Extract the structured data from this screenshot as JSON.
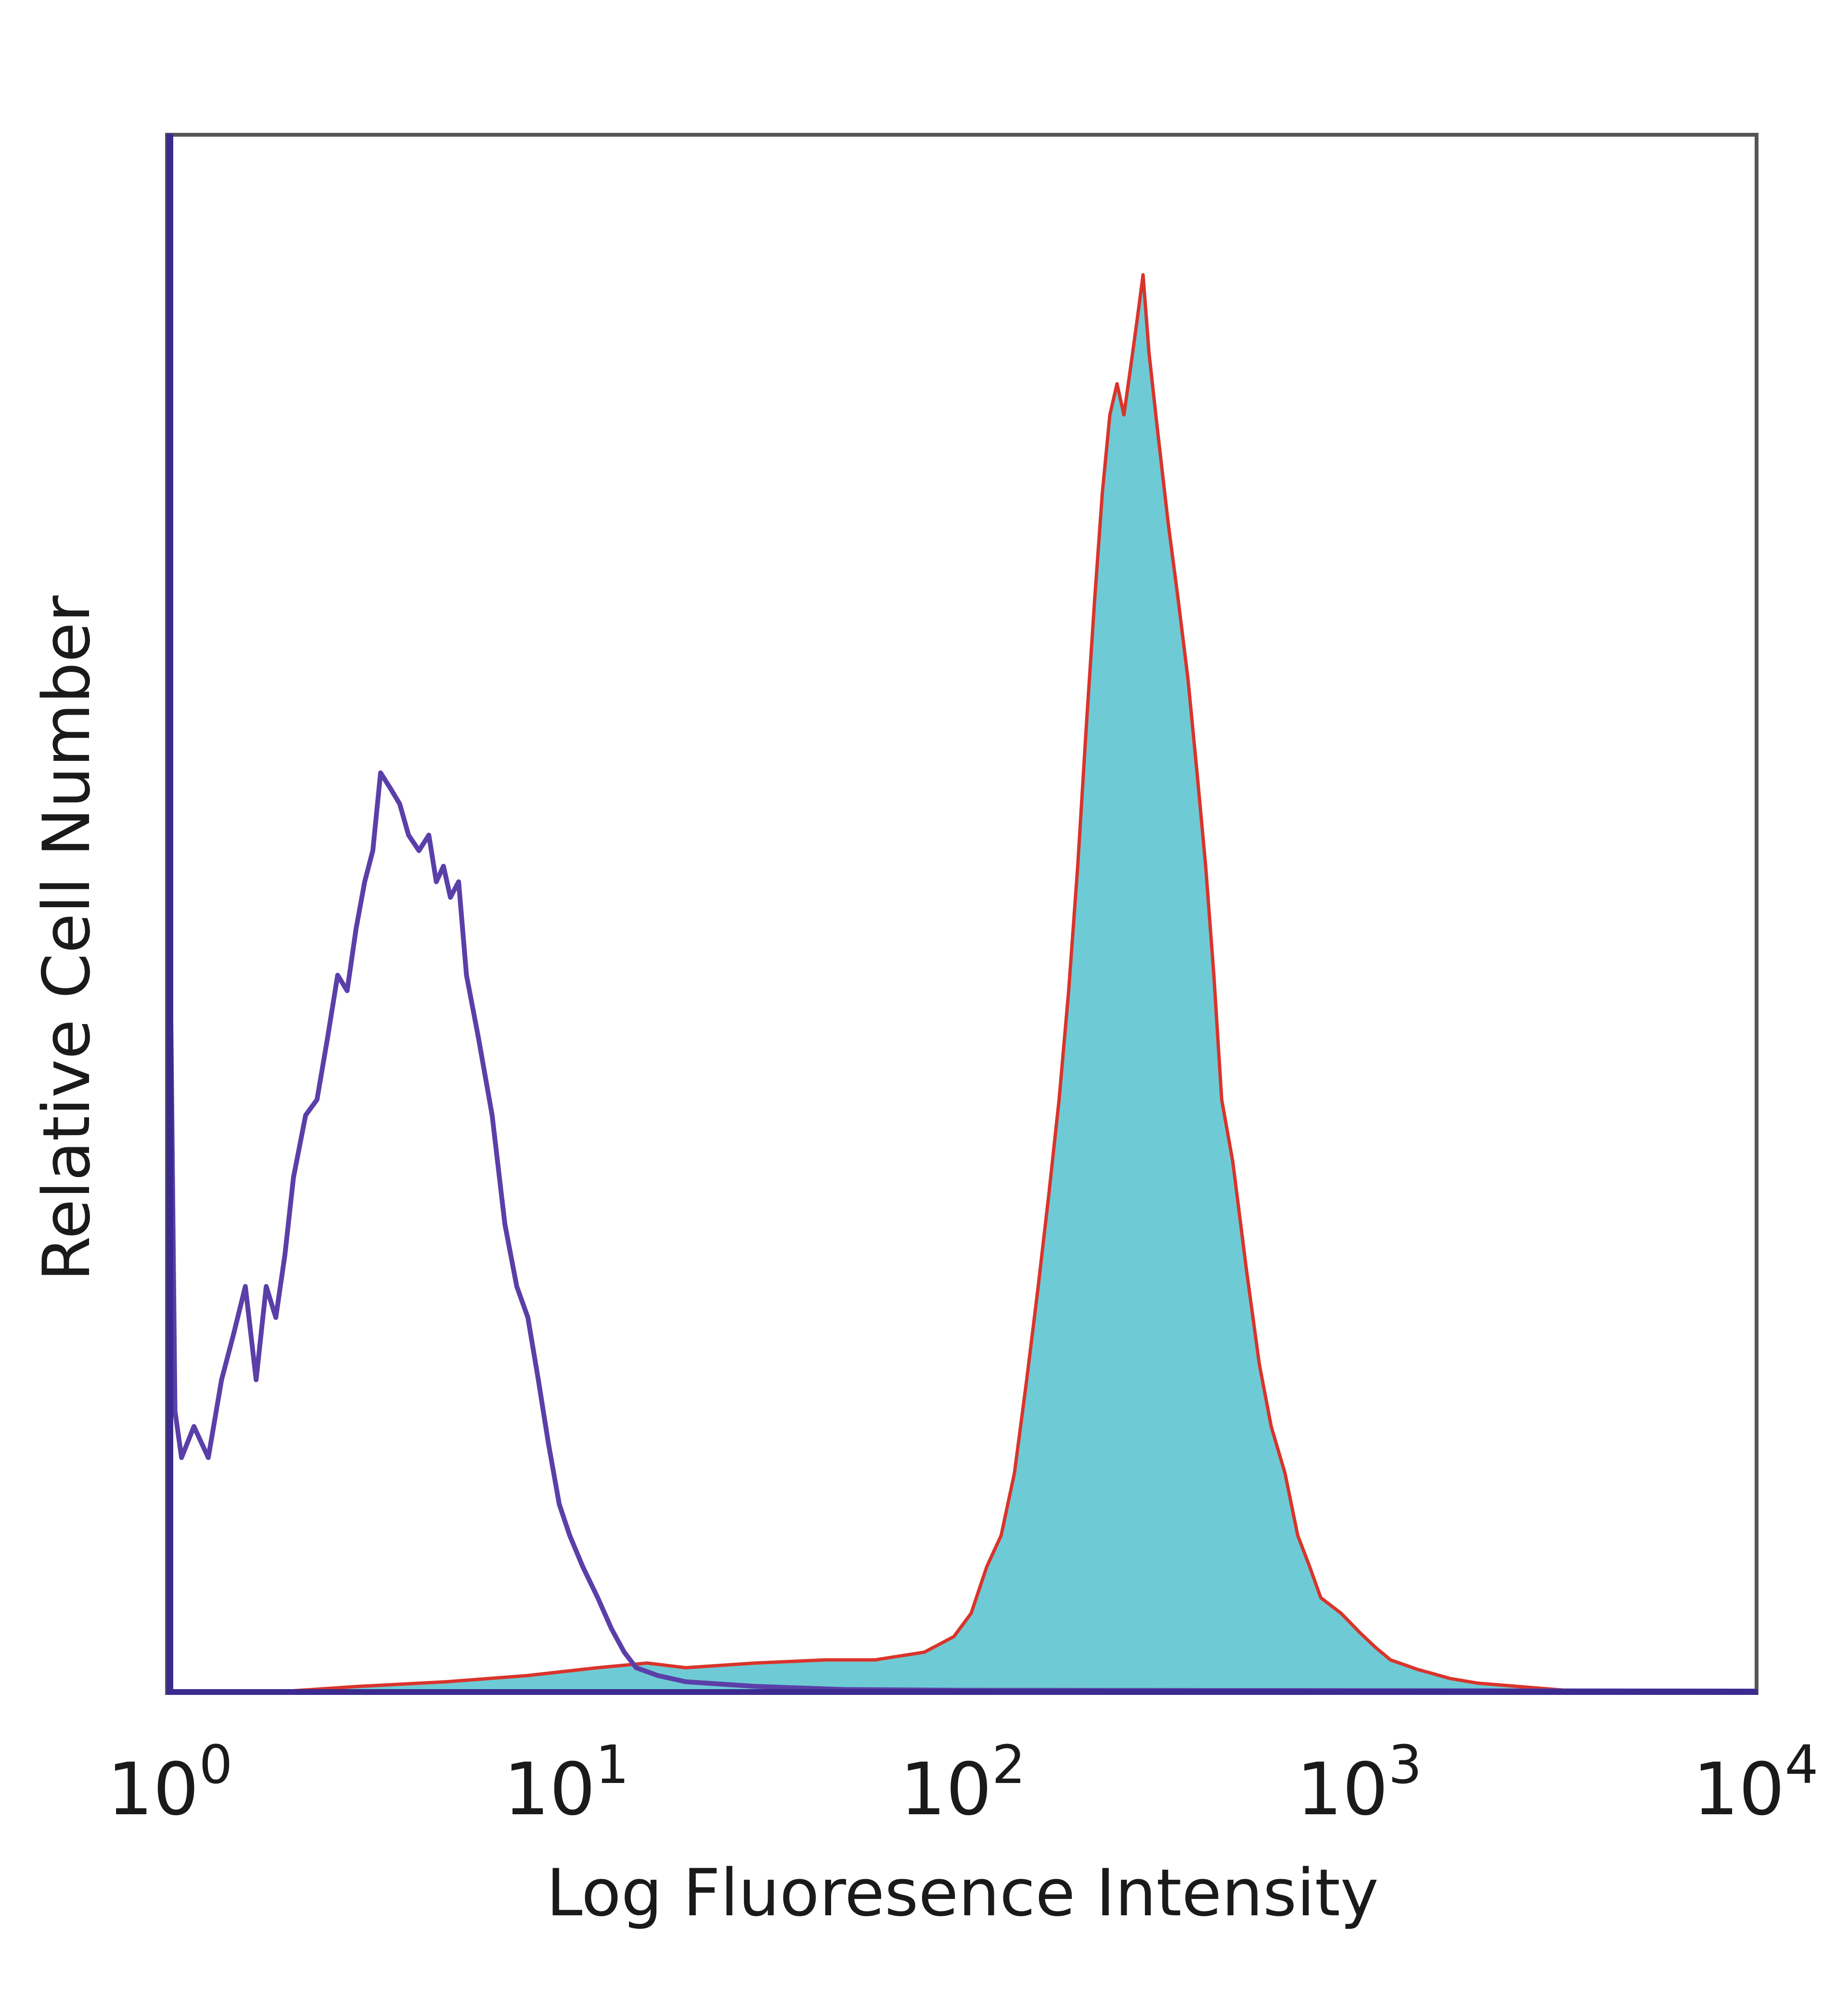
{
  "chart_data": {
    "type": "area",
    "title": "",
    "xlabel": "Log Fluoresence Intensity",
    "ylabel": "Relative Cell Number",
    "x_scale": "log",
    "xlim": [
      1,
      10000
    ],
    "ylim": [
      0,
      100
    ],
    "grid": false,
    "legend": "none",
    "x_ticks": [
      {
        "base": "10",
        "exp": "0",
        "value": 1
      },
      {
        "base": "10",
        "exp": "1",
        "value": 10
      },
      {
        "base": "10",
        "exp": "2",
        "value": 100
      },
      {
        "base": "10",
        "exp": "3",
        "value": 1000
      },
      {
        "base": "10",
        "exp": "4",
        "value": 10000
      }
    ],
    "series": [
      {
        "style": "line",
        "color": "#5b3fa8",
        "points": [
          [
            1.0,
            49
          ],
          [
            1.03,
            18
          ],
          [
            1.07,
            15
          ],
          [
            1.15,
            17
          ],
          [
            1.25,
            15
          ],
          [
            1.35,
            20
          ],
          [
            1.45,
            23
          ],
          [
            1.55,
            26
          ],
          [
            1.65,
            20
          ],
          [
            1.75,
            26
          ],
          [
            1.85,
            24
          ],
          [
            1.95,
            28
          ],
          [
            2.05,
            33
          ],
          [
            2.2,
            37
          ],
          [
            2.35,
            38
          ],
          [
            2.5,
            42
          ],
          [
            2.65,
            46
          ],
          [
            2.8,
            45
          ],
          [
            2.95,
            49
          ],
          [
            3.1,
            52
          ],
          [
            3.25,
            54
          ],
          [
            3.4,
            59
          ],
          [
            3.6,
            58
          ],
          [
            3.8,
            57
          ],
          [
            4.0,
            55
          ],
          [
            4.25,
            54
          ],
          [
            4.5,
            55
          ],
          [
            4.7,
            52
          ],
          [
            4.9,
            53
          ],
          [
            5.1,
            51
          ],
          [
            5.35,
            52
          ],
          [
            5.6,
            46
          ],
          [
            6.0,
            42
          ],
          [
            6.5,
            37
          ],
          [
            7.0,
            30
          ],
          [
            7.5,
            26
          ],
          [
            8.0,
            24
          ],
          [
            8.5,
            20
          ],
          [
            9.0,
            16
          ],
          [
            9.6,
            12
          ],
          [
            10.2,
            10
          ],
          [
            11.0,
            8
          ],
          [
            12.0,
            6
          ],
          [
            13.0,
            4
          ],
          [
            14.0,
            2.5
          ],
          [
            15.0,
            1.5
          ],
          [
            17.0,
            1
          ],
          [
            20.0,
            0.6
          ],
          [
            30.0,
            0.3
          ],
          [
            50.0,
            0.1
          ],
          [
            100.0,
            0.05
          ],
          [
            10000.0,
            0
          ]
        ]
      },
      {
        "style": "filled",
        "fill": "#6ecbd6",
        "stroke": "#d9342b",
        "points": [
          [
            1.0,
            0
          ],
          [
            2.0,
            0
          ],
          [
            3.0,
            0.3
          ],
          [
            5.0,
            0.6
          ],
          [
            8.0,
            1
          ],
          [
            12.0,
            1.5
          ],
          [
            16.0,
            1.8
          ],
          [
            20.0,
            1.5
          ],
          [
            30.0,
            1.8
          ],
          [
            45.0,
            2
          ],
          [
            60.0,
            2
          ],
          [
            80.0,
            2.5
          ],
          [
            95.0,
            3.5
          ],
          [
            105.0,
            5
          ],
          [
            115.0,
            8
          ],
          [
            125.0,
            10
          ],
          [
            135.0,
            14
          ],
          [
            145.0,
            20
          ],
          [
            155.0,
            26
          ],
          [
            165.0,
            32
          ],
          [
            175.0,
            38
          ],
          [
            185.0,
            45
          ],
          [
            195.0,
            53
          ],
          [
            205.0,
            62
          ],
          [
            215.0,
            70
          ],
          [
            225.0,
            77
          ],
          [
            235.0,
            82
          ],
          [
            245.0,
            84
          ],
          [
            255.0,
            82
          ],
          [
            265.0,
            85
          ],
          [
            275.0,
            88
          ],
          [
            285.0,
            91
          ],
          [
            295.0,
            86
          ],
          [
            310.0,
            81
          ],
          [
            330.0,
            75
          ],
          [
            350.0,
            70
          ],
          [
            370.0,
            65
          ],
          [
            390.0,
            59
          ],
          [
            410.0,
            53
          ],
          [
            430.0,
            46
          ],
          [
            450.0,
            38
          ],
          [
            480.0,
            34
          ],
          [
            520.0,
            27
          ],
          [
            560.0,
            21
          ],
          [
            600.0,
            17
          ],
          [
            650.0,
            14
          ],
          [
            700.0,
            10
          ],
          [
            750.0,
            8
          ],
          [
            800.0,
            6
          ],
          [
            900.0,
            5
          ],
          [
            1000.0,
            3.8
          ],
          [
            1100.0,
            2.8
          ],
          [
            1200.0,
            2
          ],
          [
            1400.0,
            1.4
          ],
          [
            1700.0,
            0.8
          ],
          [
            2000.0,
            0.5
          ],
          [
            2500.0,
            0.3
          ],
          [
            3500.0,
            0
          ],
          [
            10000.0,
            0
          ]
        ]
      }
    ]
  }
}
